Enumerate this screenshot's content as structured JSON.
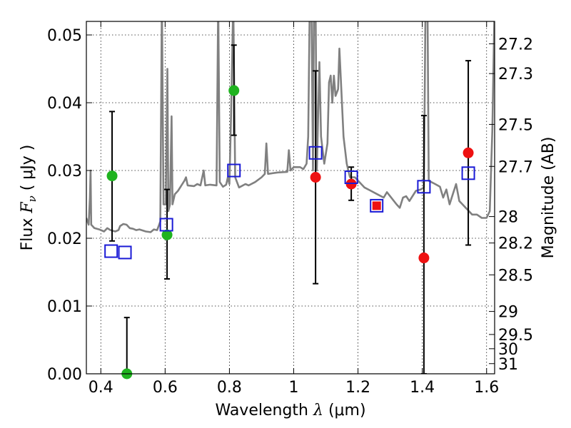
{
  "chart_data": {
    "type": "scatter",
    "title": "",
    "xlabel_prefix": "Wavelength",
    "xlabel_symbol": "λ",
    "xlabel_unit": "(μm)",
    "ylabel_prefix": "Flux",
    "ylabel_symbol": "F",
    "ylabel_sub": "ν",
    "ylabel_unit": "( μJy )",
    "y2label": "Magnitude (AB)",
    "xlim": [
      0.355,
      1.625
    ],
    "ylim": [
      0.0,
      0.052
    ],
    "grid": true,
    "x_ticks": [
      0.4,
      0.6,
      0.8,
      1.0,
      1.2,
      1.4,
      1.6
    ],
    "x_tick_labels": [
      "0.4",
      "0.6",
      "0.8",
      "1",
      "1.2",
      "1.4",
      "1.6"
    ],
    "y_ticks": [
      0.0,
      0.01,
      0.02,
      0.03,
      0.04,
      0.05
    ],
    "y_tick_labels": [
      "0.00",
      "0.01",
      "0.02",
      "0.03",
      "0.04",
      "0.05"
    ],
    "magnitude_ticks": [
      {
        "label": "27.2",
        "flux": 0.0487
      },
      {
        "label": "27.3",
        "flux": 0.0443
      },
      {
        "label": "27.5",
        "flux": 0.0368
      },
      {
        "label": "27.7",
        "flux": 0.0306
      },
      {
        "label": "28",
        "flux": 0.0232
      },
      {
        "label": "28.2",
        "flux": 0.0193
      },
      {
        "label": "28.5",
        "flux": 0.0146
      },
      {
        "label": "29",
        "flux": 0.0092
      },
      {
        "label": "29.5",
        "flux": 0.0058
      },
      {
        "label": "30",
        "flux": 0.0037
      },
      {
        "label": "31",
        "flux": 0.0015
      }
    ],
    "colors": {
      "template": "#808080",
      "green": "#1fb31f",
      "red": "#ee1111",
      "blue": "#1a1ad6",
      "errorbar": "#000000"
    },
    "series": [
      {
        "name": "template spectrum",
        "style": "line",
        "points": [
          [
            0.355,
            0.023
          ],
          [
            0.362,
            0.022
          ],
          [
            0.366,
            0.026
          ],
          [
            0.368,
            0.03
          ],
          [
            0.37,
            0.022
          ],
          [
            0.38,
            0.0215
          ],
          [
            0.395,
            0.0213
          ],
          [
            0.41,
            0.021
          ],
          [
            0.42,
            0.0215
          ],
          [
            0.43,
            0.0212
          ],
          [
            0.445,
            0.021
          ],
          [
            0.455,
            0.0212
          ],
          [
            0.46,
            0.0218
          ],
          [
            0.47,
            0.0221
          ],
          [
            0.48,
            0.022
          ],
          [
            0.49,
            0.0215
          ],
          [
            0.5,
            0.0214
          ],
          [
            0.51,
            0.0212
          ],
          [
            0.52,
            0.0213
          ],
          [
            0.54,
            0.021
          ],
          [
            0.555,
            0.0209
          ],
          [
            0.565,
            0.0213
          ],
          [
            0.575,
            0.0212
          ],
          [
            0.58,
            0.0218
          ],
          [
            0.585,
            0.0225
          ],
          [
            0.59,
            0.055
          ],
          [
            0.595,
            0.025
          ],
          [
            0.602,
            0.025
          ],
          [
            0.607,
            0.045
          ],
          [
            0.61,
            0.024
          ],
          [
            0.615,
            0.025
          ],
          [
            0.62,
            0.038
          ],
          [
            0.623,
            0.025
          ],
          [
            0.63,
            0.0265
          ],
          [
            0.64,
            0.027
          ],
          [
            0.66,
            0.0285
          ],
          [
            0.665,
            0.029
          ],
          [
            0.67,
            0.0278
          ],
          [
            0.69,
            0.0277
          ],
          [
            0.7,
            0.028
          ],
          [
            0.71,
            0.0278
          ],
          [
            0.72,
            0.03
          ],
          [
            0.725,
            0.0278
          ],
          [
            0.74,
            0.0279
          ],
          [
            0.76,
            0.0278
          ],
          [
            0.765,
            0.055
          ],
          [
            0.77,
            0.0283
          ],
          [
            0.78,
            0.0276
          ],
          [
            0.79,
            0.0279
          ],
          [
            0.795,
            0.029
          ],
          [
            0.8,
            0.028
          ],
          [
            0.805,
            0.038
          ],
          [
            0.812,
            0.055
          ],
          [
            0.818,
            0.029
          ],
          [
            0.83,
            0.0275
          ],
          [
            0.85,
            0.028
          ],
          [
            0.86,
            0.0278
          ],
          [
            0.88,
            0.0283
          ],
          [
            0.9,
            0.029
          ],
          [
            0.91,
            0.0295
          ],
          [
            0.915,
            0.034
          ],
          [
            0.92,
            0.0295
          ],
          [
            0.95,
            0.0297
          ],
          [
            0.98,
            0.0298
          ],
          [
            0.985,
            0.033
          ],
          [
            0.99,
            0.03
          ],
          [
            1.0,
            0.0305
          ],
          [
            1.02,
            0.0305
          ],
          [
            1.03,
            0.0302
          ],
          [
            1.04,
            0.031
          ],
          [
            1.045,
            0.035
          ],
          [
            1.05,
            0.055
          ],
          [
            1.055,
            0.055
          ],
          [
            1.06,
            0.03
          ],
          [
            1.063,
            0.055
          ],
          [
            1.068,
            0.055
          ],
          [
            1.072,
            0.03
          ],
          [
            1.08,
            0.046
          ],
          [
            1.085,
            0.035
          ],
          [
            1.095,
            0.031
          ],
          [
            1.105,
            0.034
          ],
          [
            1.11,
            0.043
          ],
          [
            1.115,
            0.044
          ],
          [
            1.12,
            0.04
          ],
          [
            1.125,
            0.044
          ],
          [
            1.13,
            0.041
          ],
          [
            1.138,
            0.042
          ],
          [
            1.142,
            0.048
          ],
          [
            1.148,
            0.042
          ],
          [
            1.155,
            0.035
          ],
          [
            1.165,
            0.031
          ],
          [
            1.175,
            0.029
          ],
          [
            1.19,
            0.029
          ],
          [
            1.21,
            0.028
          ],
          [
            1.22,
            0.0275
          ],
          [
            1.24,
            0.027
          ],
          [
            1.26,
            0.0265
          ],
          [
            1.28,
            0.026
          ],
          [
            1.29,
            0.0268
          ],
          [
            1.3,
            0.0262
          ],
          [
            1.32,
            0.025
          ],
          [
            1.33,
            0.0245
          ],
          [
            1.34,
            0.026
          ],
          [
            1.35,
            0.0262
          ],
          [
            1.36,
            0.0255
          ],
          [
            1.38,
            0.027
          ],
          [
            1.395,
            0.0272
          ],
          [
            1.405,
            0.0275
          ],
          [
            1.41,
            0.055
          ],
          [
            1.416,
            0.055
          ],
          [
            1.42,
            0.0285
          ],
          [
            1.44,
            0.028
          ],
          [
            1.455,
            0.0276
          ],
          [
            1.465,
            0.026
          ],
          [
            1.475,
            0.0272
          ],
          [
            1.485,
            0.025
          ],
          [
            1.495,
            0.0265
          ],
          [
            1.505,
            0.028
          ],
          [
            1.515,
            0.0255
          ],
          [
            1.525,
            0.025
          ],
          [
            1.535,
            0.0245
          ],
          [
            1.545,
            0.024
          ],
          [
            1.555,
            0.0235
          ],
          [
            1.57,
            0.0235
          ],
          [
            1.585,
            0.023
          ],
          [
            1.6,
            0.023
          ],
          [
            1.61,
            0.024
          ],
          [
            1.618,
            0.036
          ],
          [
            1.625,
            0.055
          ]
        ]
      },
      {
        "name": "observed (green)",
        "style": "circle",
        "points": [
          {
            "x": 0.435,
            "y": 0.0292,
            "ylo": 0.0196,
            "yhi": 0.0387
          },
          {
            "x": 0.481,
            "y": 0.0,
            "ylo": 0.0,
            "yhi": 0.0083
          },
          {
            "x": 0.606,
            "y": 0.0205,
            "ylo": 0.014,
            "yhi": 0.0272
          },
          {
            "x": 0.814,
            "y": 0.0418,
            "ylo": 0.0352,
            "yhi": 0.0485
          }
        ]
      },
      {
        "name": "observed (red)",
        "style": "circle",
        "points": [
          {
            "x": 1.068,
            "y": 0.029,
            "ylo": 0.0133,
            "yhi": 0.0447
          },
          {
            "x": 1.179,
            "y": 0.028,
            "ylo": 0.0256,
            "yhi": 0.0305
          },
          {
            "x": 1.258,
            "y": 0.0248,
            "ylo": 0.0248,
            "yhi": 0.0248
          },
          {
            "x": 1.405,
            "y": 0.0171,
            "ylo": 0.0,
            "yhi": 0.0381
          },
          {
            "x": 1.543,
            "y": 0.0326,
            "ylo": 0.019,
            "yhi": 0.0462
          }
        ]
      },
      {
        "name": "model photometry",
        "style": "square",
        "points": [
          {
            "x": 0.432,
            "y": 0.0181
          },
          {
            "x": 0.475,
            "y": 0.0179
          },
          {
            "x": 0.604,
            "y": 0.022
          },
          {
            "x": 0.814,
            "y": 0.03
          },
          {
            "x": 1.068,
            "y": 0.0326
          },
          {
            "x": 1.179,
            "y": 0.029
          },
          {
            "x": 1.258,
            "y": 0.0248
          },
          {
            "x": 1.405,
            "y": 0.0276
          },
          {
            "x": 1.543,
            "y": 0.0296
          }
        ]
      }
    ]
  }
}
